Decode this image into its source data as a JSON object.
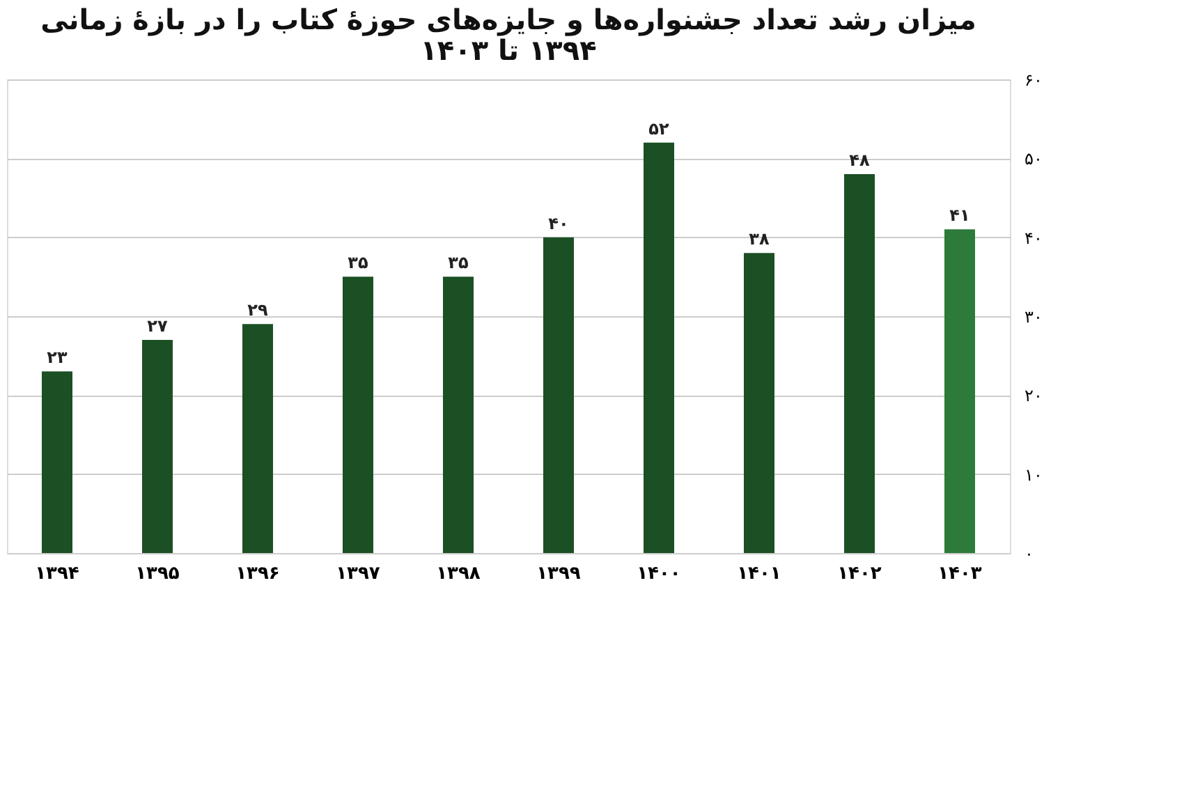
{
  "chart_data": {
    "type": "bar",
    "title": "میزان رشد تعداد جشنواره‌ها و جایزه‌های حوزهٔ کتاب را در بازهٔ زمانی\n۱۳۹۴ تا ۱۴۰۳",
    "categories": [
      "۱۳۹۴",
      "۱۳۹۵",
      "۱۳۹۶",
      "۱۳۹۷",
      "۱۳۹۸",
      "۱۳۹۹",
      "۱۴۰۰",
      "۱۴۰۱",
      "۱۴۰۲",
      "۱۴۰۳"
    ],
    "values": [
      23,
      27,
      29,
      35,
      35,
      40,
      52,
      38,
      48,
      41
    ],
    "colors": [
      "#1b4f24",
      "#1b4f24",
      "#1b4f24",
      "#1b4f24",
      "#1b4f24",
      "#1b4f24",
      "#1b4f24",
      "#1b4f24",
      "#1b4f24",
      "#2e7a3a"
    ],
    "value_labels": [
      "۲۳",
      "۲۷",
      "۲۹",
      "۳۵",
      "۳۵",
      "۴۰",
      "۵۲",
      "۳۸",
      "۴۸",
      "۴۱"
    ],
    "ylim": [
      0,
      60
    ],
    "yticks": [
      {
        "value": 0,
        "label": "۰"
      },
      {
        "value": 10,
        "label": "۱۰"
      },
      {
        "value": 20,
        "label": "۲۰"
      },
      {
        "value": 30,
        "label": "۳۰"
      },
      {
        "value": 40,
        "label": "۴۰"
      },
      {
        "value": 50,
        "label": "۵۰"
      },
      {
        "value": 60,
        "label": "۶۰"
      }
    ],
    "grid": "y"
  }
}
